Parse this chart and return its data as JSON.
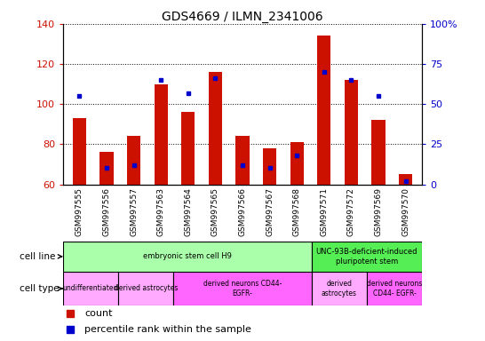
{
  "title": "GDS4669 / ILMN_2341006",
  "samples": [
    "GSM997555",
    "GSM997556",
    "GSM997557",
    "GSM997563",
    "GSM997564",
    "GSM997565",
    "GSM997566",
    "GSM997567",
    "GSM997568",
    "GSM997571",
    "GSM997572",
    "GSM997569",
    "GSM997570"
  ],
  "count_values": [
    93,
    76,
    84,
    110,
    96,
    116,
    84,
    78,
    81,
    134,
    112,
    92,
    65
  ],
  "percentile_values": [
    55,
    10,
    12,
    65,
    57,
    66,
    12,
    10,
    18,
    70,
    65,
    55,
    2
  ],
  "ylim_left": [
    60,
    140
  ],
  "ylim_right": [
    0,
    100
  ],
  "yticks_left": [
    60,
    80,
    100,
    120,
    140
  ],
  "yticks_right": [
    0,
    25,
    50,
    75,
    100
  ],
  "bar_color": "#CC1100",
  "percentile_color": "#0000CC",
  "cell_line_groups": [
    {
      "label": "embryonic stem cell H9",
      "start": 0,
      "end": 9,
      "color": "#AAFFAA"
    },
    {
      "label": "UNC-93B-deficient-induced\npluripotent stem",
      "start": 9,
      "end": 13,
      "color": "#55EE55"
    }
  ],
  "cell_type_groups": [
    {
      "label": "undifferentiated",
      "start": 0,
      "end": 2,
      "color": "#FFAAFF"
    },
    {
      "label": "derived astrocytes",
      "start": 2,
      "end": 4,
      "color": "#FFAAFF"
    },
    {
      "label": "derived neurons CD44-\nEGFR-",
      "start": 4,
      "end": 9,
      "color": "#FF66FF"
    },
    {
      "label": "derived\nastrocytes",
      "start": 9,
      "end": 11,
      "color": "#FFAAFF"
    },
    {
      "label": "derived neurons\nCD44- EGFR-",
      "start": 11,
      "end": 13,
      "color": "#FF66FF"
    }
  ],
  "row_labels": [
    "cell line",
    "cell type"
  ],
  "legend_count_label": "count",
  "legend_percentile_label": "percentile rank within the sample",
  "bar_width": 0.5,
  "figsize": [
    5.46,
    3.84
  ],
  "dpi": 100
}
